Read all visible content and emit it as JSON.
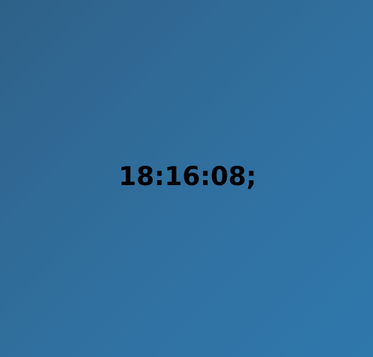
{
  "clock": {
    "time_text": "18:16:08;"
  },
  "colors": {
    "background_start": "#2f6188",
    "background_end": "#2f78ac",
    "text": "#000000"
  }
}
